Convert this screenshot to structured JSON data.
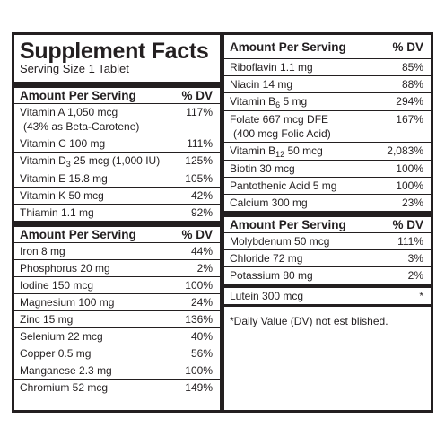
{
  "title": "Supplement Facts",
  "serving_size": "Serving Size 1 Tablet",
  "header": {
    "amount_label": "Amount Per Serving",
    "dv_label": "% DV"
  },
  "left_section1": [
    {
      "name": "Vitamin A 1,050 mcg",
      "name2": "(43% as Beta-Carotene)",
      "dv": "117%"
    },
    {
      "name": "Vitamin C 100 mg",
      "dv": "111%"
    },
    {
      "pre": "Vitamin D",
      "sub": "3",
      "post": " 25 mcg (1,000 IU)",
      "dv": "125%"
    },
    {
      "name": "Vitamin E  15.8 mg",
      "dv": "105%"
    },
    {
      "name": "Vitamin K 50 mcg",
      "dv": "42%"
    },
    {
      "name": "Thiamin 1.1 mg",
      "dv": "92%"
    }
  ],
  "left_section2": [
    {
      "name": "Iron 8 mg",
      "dv": "44%"
    },
    {
      "name": "Phosphorus 20 mg",
      "dv": "2%"
    },
    {
      "name": "Iodine 150 mcg",
      "dv": "100%"
    },
    {
      "name": "Magnesium 100 mg",
      "dv": "24%"
    },
    {
      "name": "Zinc 15 mg",
      "dv": "136%"
    },
    {
      "name": "Selenium 22 mcg",
      "dv": "40%"
    },
    {
      "name": "Copper 0.5 mg",
      "dv": "56%"
    },
    {
      "name": "Manganese 2.3 mg",
      "dv": "100%"
    },
    {
      "name": "Chromium 52 mcg",
      "dv": "149%"
    }
  ],
  "right_section1": [
    {
      "name": "Riboflavin 1.1 mg",
      "dv": "85%"
    },
    {
      "name": "Niacin 14 mg",
      "dv": "88%"
    },
    {
      "pre": "Vitamin B",
      "sub": "6",
      "post": " 5 mg",
      "dv": "294%"
    },
    {
      "name": "Folate 667 mcg DFE",
      "name2": "(400 mcg Folic Acid)",
      "dv": "167%"
    },
    {
      "pre": "Vitamin B",
      "sub": "12",
      "post": " 50 mcg",
      "dv": "2,083%"
    },
    {
      "name": "Biotin 30 mcg",
      "dv": "100%"
    },
    {
      "name": "Pantothenic Acid 5 mg",
      "dv": "100%"
    },
    {
      "name": "Calcium 300 mg",
      "dv": "23%"
    }
  ],
  "right_section2": [
    {
      "name": "Molybdenum 50 mcg",
      "dv": "111%"
    },
    {
      "name": "Chloride 72 mg",
      "dv": "3%"
    },
    {
      "name": "Potassium 80 mg",
      "dv": "2%"
    }
  ],
  "lutein": {
    "name": "Lutein 300 mcg",
    "dv": "*"
  },
  "footnote": "*Daily Value (DV) not est  blished."
}
